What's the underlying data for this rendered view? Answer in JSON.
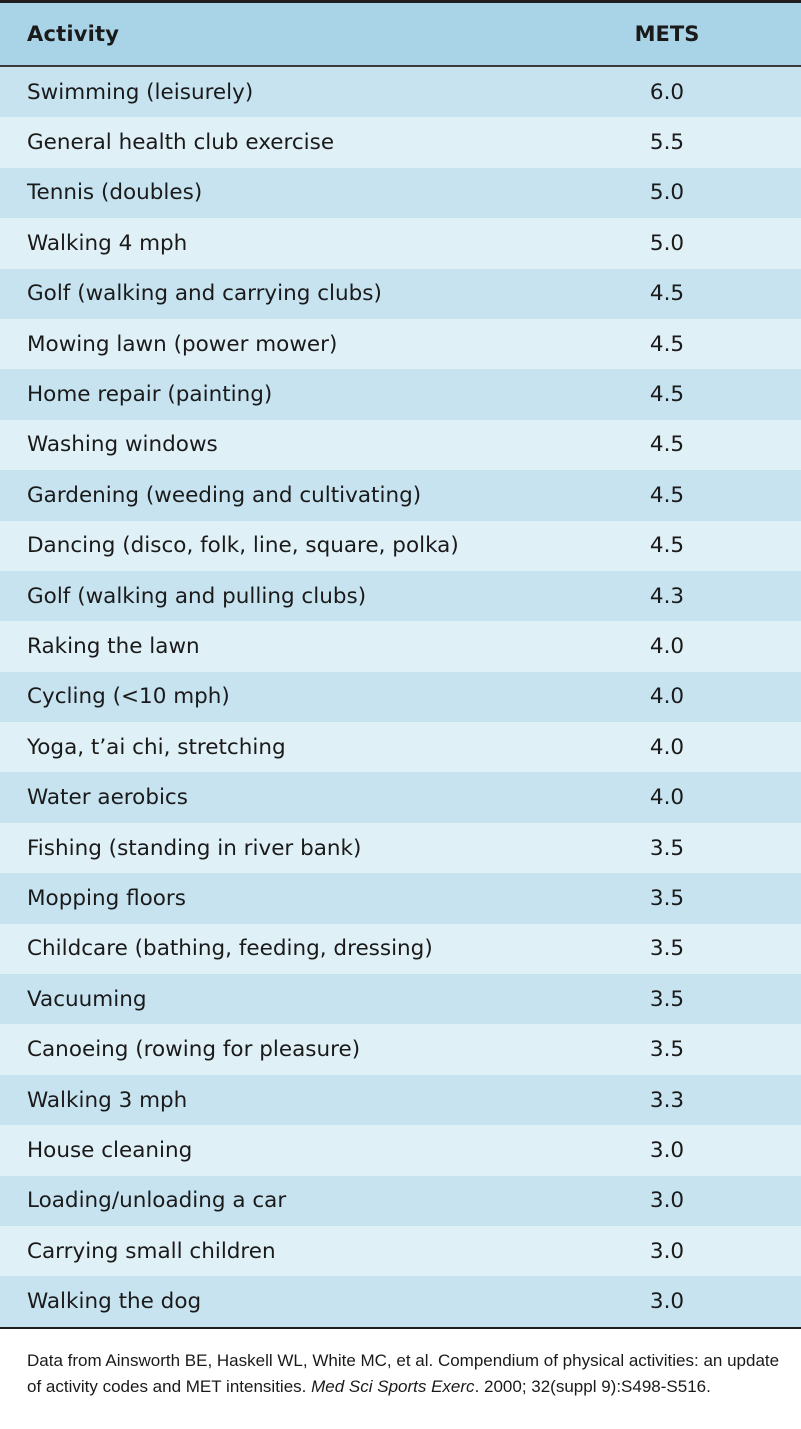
{
  "table": {
    "headers": {
      "activity": "Activity",
      "mets": "METS"
    },
    "rows": [
      {
        "activity": "Swimming (leisurely)",
        "mets": "6.0"
      },
      {
        "activity": "General health club exercise",
        "mets": "5.5"
      },
      {
        "activity": "Tennis (doubles)",
        "mets": "5.0"
      },
      {
        "activity": "Walking 4 mph",
        "mets": "5.0"
      },
      {
        "activity": "Golf (walking and carrying clubs)",
        "mets": "4.5"
      },
      {
        "activity": "Mowing lawn (power mower)",
        "mets": "4.5"
      },
      {
        "activity": "Home repair (painting)",
        "mets": "4.5"
      },
      {
        "activity": "Washing windows",
        "mets": "4.5"
      },
      {
        "activity": "Gardening (weeding and cultivating)",
        "mets": "4.5"
      },
      {
        "activity": "Dancing (disco, folk, line, square, polka)",
        "mets": "4.5"
      },
      {
        "activity": "Golf (walking and pulling clubs)",
        "mets": "4.3"
      },
      {
        "activity": "Raking the lawn",
        "mets": "4.0"
      },
      {
        "activity": "Cycling (<10 mph)",
        "mets": "4.0"
      },
      {
        "activity": "Yoga, t’ai chi, stretching",
        "mets": "4.0"
      },
      {
        "activity": "Water aerobics",
        "mets": "4.0"
      },
      {
        "activity": "Fishing (standing in river bank)",
        "mets": "3.5"
      },
      {
        "activity": "Mopping floors",
        "mets": "3.5"
      },
      {
        "activity": "Childcare (bathing, feeding, dressing)",
        "mets": "3.5"
      },
      {
        "activity": "Vacuuming",
        "mets": "3.5"
      },
      {
        "activity": "Canoeing (rowing for pleasure)",
        "mets": "3.5"
      },
      {
        "activity": "Walking 3 mph",
        "mets": "3.3"
      },
      {
        "activity": "House cleaning",
        "mets": "3.0"
      },
      {
        "activity": "Loading/unloading a car",
        "mets": "3.0"
      },
      {
        "activity": "Carrying small children",
        "mets": "3.0"
      },
      {
        "activity": "Walking the dog",
        "mets": "3.0"
      }
    ]
  },
  "footnote": {
    "part1": "Data from Ainsworth BE, Haskell WL, White MC, et al. Compendium of physical activities: an update of activity codes and MET intensities. ",
    "journal": "Med Sci Sports Exerc",
    "part2": ". 2000; 32(suppl 9):S498-S516."
  },
  "colors": {
    "header_bg": "#a9d4e8",
    "row_dark": "#c7e3f0",
    "row_light": "#e0f0f7",
    "rule": "#1f1f1f"
  }
}
